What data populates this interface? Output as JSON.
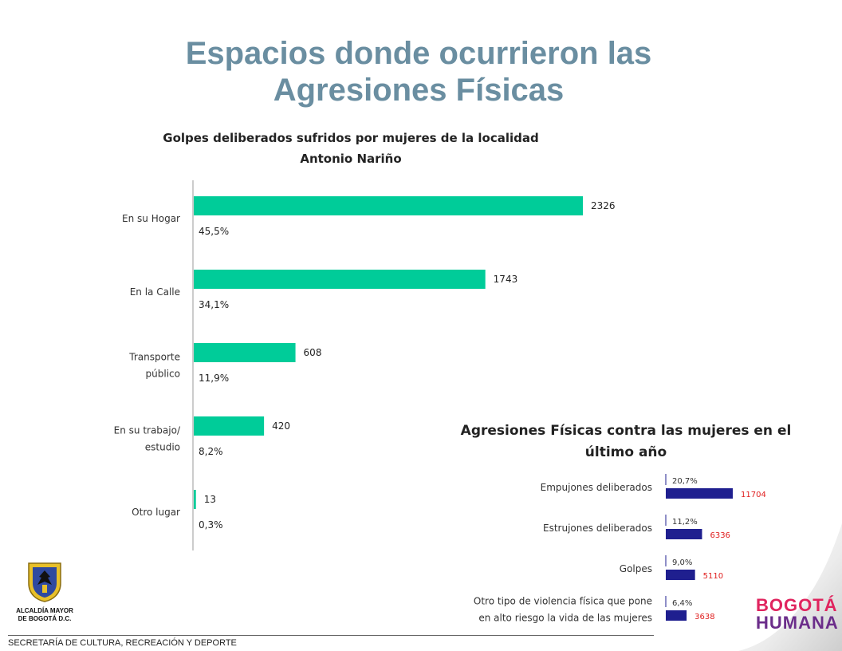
{
  "page": {
    "title": "Espacios donde ocurrieron las Agresiones Físicas",
    "footer": "SECRETARÍA DE CULTURA, RECREACIÓN Y DEPORTE",
    "logo_left_text": "ALCALDÍA MAYOR DE BOGOTÁ D.C.",
    "logo_right_line1": "BOGOTÁ",
    "logo_right_line2": "HUMANA"
  },
  "colors": {
    "title": "#6a8ea1",
    "bar1": "#00cc99",
    "bar2": "#1f1f8f",
    "value2": "#e02020"
  },
  "chart_data": [
    {
      "type": "bar",
      "orientation": "horizontal",
      "title": "Golpes  deliberados sufridos por mujeres de la localidad Antonio Nariño",
      "categories": [
        "En su Hogar",
        "En la Calle",
        "Transporte público",
        "En su trabajo/ estudio",
        "Otro lugar"
      ],
      "values": [
        2326,
        1743,
        608,
        420,
        13
      ],
      "percent_labels": [
        "45,5%",
        "34,1%",
        "11,9%",
        "8,2%",
        "0,3%"
      ]
    },
    {
      "type": "bar",
      "orientation": "horizontal",
      "title": "Agresiones Físicas contra las mujeres en el último año",
      "categories": [
        "Empujones deliberados",
        "Estrujones deliberados",
        "Golpes",
        "Otro tipo de violencia física que pone en alto riesgo la vida de las mujeres"
      ],
      "values": [
        11704,
        6336,
        5110,
        3638
      ],
      "percent_labels": [
        "20,7%",
        "11,2%",
        "9,0%",
        "6,4%"
      ]
    }
  ]
}
